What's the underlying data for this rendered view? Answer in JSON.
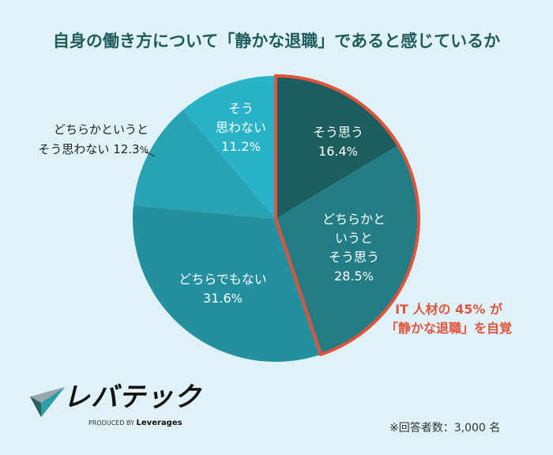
{
  "chart_data": {
    "type": "pie",
    "title": "自身の働き方について「静かな退職」であると感じているか",
    "start": "12 o'clock, clockwise",
    "slices": [
      {
        "label": "そう思う",
        "label_lines": [
          "そう思う"
        ],
        "value": 16.4,
        "value_text": "16.4",
        "color": "#1c5e5e"
      },
      {
        "label": "どちらかというとそう思う",
        "label_lines": [
          "どちらかと",
          "いうと",
          "そう思う"
        ],
        "value": 28.5,
        "value_text": "28.5",
        "color": "#237d85"
      },
      {
        "label": "どちらでもない",
        "label_lines": [
          "どちらでもない"
        ],
        "value": 31.6,
        "value_text": "31.6",
        "color": "#24909e"
      },
      {
        "label": "どちらかというとそう思わない",
        "label_lines": [
          "どちらかというと",
          "そう思わない 12.3"
        ],
        "value": 12.3,
        "value_text": "12.3",
        "color": "#27a3b4"
      },
      {
        "label": "そう思わない",
        "label_lines": [
          "そう",
          "思わない"
        ],
        "value": 11.2,
        "value_text": "11.2",
        "color": "#2ab3c8"
      }
    ],
    "percent_sign": "%",
    "highlight": {
      "slices": [
        "そう思う",
        "どちらかというとそう思う"
      ],
      "color": "#e0533c",
      "lines": [
        "IT 人材の 45% が",
        "「静かな退職」を自覚"
      ]
    }
  },
  "logo": {
    "name": "レバテック",
    "sub_prefix": "PRODUCED BY",
    "sub_brand": "Leverages"
  },
  "note": "※回答者数：3,000 名"
}
